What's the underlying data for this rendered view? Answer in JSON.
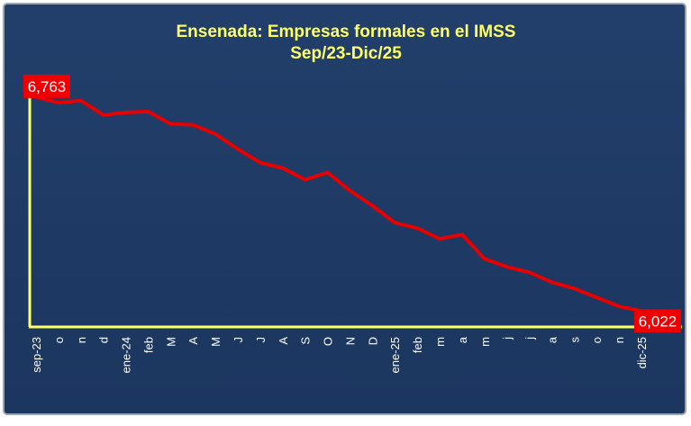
{
  "chart_data": {
    "type": "line",
    "title": "Ensenada: Empresas formales en el IMSS",
    "subtitle": "Sep/23-Dic/25",
    "categories": [
      "sep-23",
      "o",
      "n",
      "d",
      "ene-24",
      "feb",
      "M",
      "A",
      "M",
      "J",
      "J",
      "A",
      "S",
      "O",
      "N",
      "D",
      "ene-25",
      "feb",
      "m",
      "a",
      "m",
      "j",
      "j",
      "a",
      "s",
      "o",
      "n",
      "dic-25"
    ],
    "series": [
      {
        "name": "Empresas formales",
        "color": "#e60000",
        "values": [
          6763,
          6744,
          6751,
          6701,
          6710,
          6713,
          6670,
          6667,
          6635,
          6583,
          6536,
          6517,
          6477,
          6502,
          6439,
          6387,
          6328,
          6309,
          6272,
          6287,
          6203,
          6175,
          6156,
          6122,
          6100,
          6069,
          6038,
          6022
        ],
        "value_labels": [
          "6,763",
          null,
          null,
          null,
          null,
          null,
          null,
          null,
          null,
          null,
          null,
          null,
          null,
          null,
          null,
          null,
          null,
          null,
          null,
          null,
          null,
          null,
          null,
          null,
          null,
          null,
          null,
          "6,022"
        ]
      }
    ],
    "ylim": [
      5970,
      6850
    ]
  }
}
